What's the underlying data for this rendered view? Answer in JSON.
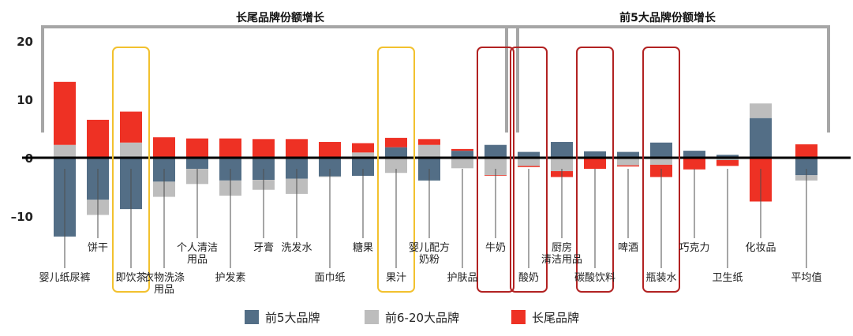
{
  "chart_data": {
    "type": "bar",
    "stacked": true,
    "ylim": [
      -17,
      24
    ],
    "yticks": [
      20,
      10,
      0,
      -10
    ],
    "ytick_labels": [
      "20",
      "10",
      "0",
      "–10"
    ],
    "grid": false,
    "legend_position": "bottom-center",
    "groups": [
      {
        "label": "长尾品牌份额增长",
        "from": 0,
        "to": 13
      },
      {
        "label": "前5大品牌份额增长",
        "from": 14,
        "to": 22
      }
    ],
    "categories": [
      "婴儿纸尿裤",
      "饼干",
      "即饮茶",
      "衣物洗涤\n用品",
      "个人清洁\n用品",
      "护发素",
      "牙膏",
      "洗发水",
      "面巾纸",
      "糖果",
      "果汁",
      "婴儿配方\n奶粉",
      "护肤品",
      "牛奶",
      "酸奶",
      "厨房\n清洁用品",
      "碳酸饮料",
      "啤酒",
      "瓶装水",
      "巧克力",
      "卫生纸",
      "化妆品",
      "平均值"
    ],
    "label_row": [
      1,
      0,
      1,
      1,
      0,
      1,
      0,
      0,
      1,
      0,
      1,
      0,
      1,
      0,
      1,
      0,
      1,
      0,
      1,
      0,
      1,
      0,
      1
    ],
    "highlight_boxes": [
      {
        "category": 2,
        "color": "#F2C12E"
      },
      {
        "category": 10,
        "color": "#F2C12E"
      },
      {
        "category": 13,
        "color": "#B22222"
      },
      {
        "category": 14,
        "color": "#B22222"
      },
      {
        "category": 16,
        "color": "#B22222"
      },
      {
        "category": 18,
        "color": "#B22222"
      }
    ],
    "series": [
      {
        "name": "前5大品牌",
        "color": "#536E86",
        "values": [
          -13.5,
          -7.2,
          -8.8,
          -4.1,
          -1.9,
          -3.9,
          -3.8,
          -3.6,
          -3.2,
          -3.1,
          1.8,
          -3.9,
          1.2,
          2.2,
          1.0,
          2.7,
          1.1,
          1.0,
          2.6,
          1.2,
          0.5,
          6.8,
          -3.0
        ]
      },
      {
        "name": "前6-20大品牌",
        "color": "#BDBDBD",
        "values": [
          2.2,
          -2.6,
          2.6,
          -2.6,
          -2.6,
          -2.6,
          -1.7,
          -2.6,
          -0.1,
          0.9,
          -2.6,
          2.2,
          -1.8,
          -3.0,
          -1.4,
          -2.3,
          -0.2,
          -1.3,
          -1.2,
          -0.2,
          -0.4,
          2.5,
          -0.9
        ]
      },
      {
        "name": "长尾品牌",
        "color": "#EE3124",
        "values": [
          10.8,
          6.5,
          5.3,
          3.5,
          3.3,
          3.3,
          3.2,
          3.2,
          2.7,
          1.6,
          1.6,
          1.0,
          0.3,
          -0.1,
          -0.2,
          -1.0,
          -1.7,
          -0.2,
          -2.1,
          -1.8,
          -1.0,
          -7.5,
          2.3
        ]
      }
    ]
  }
}
